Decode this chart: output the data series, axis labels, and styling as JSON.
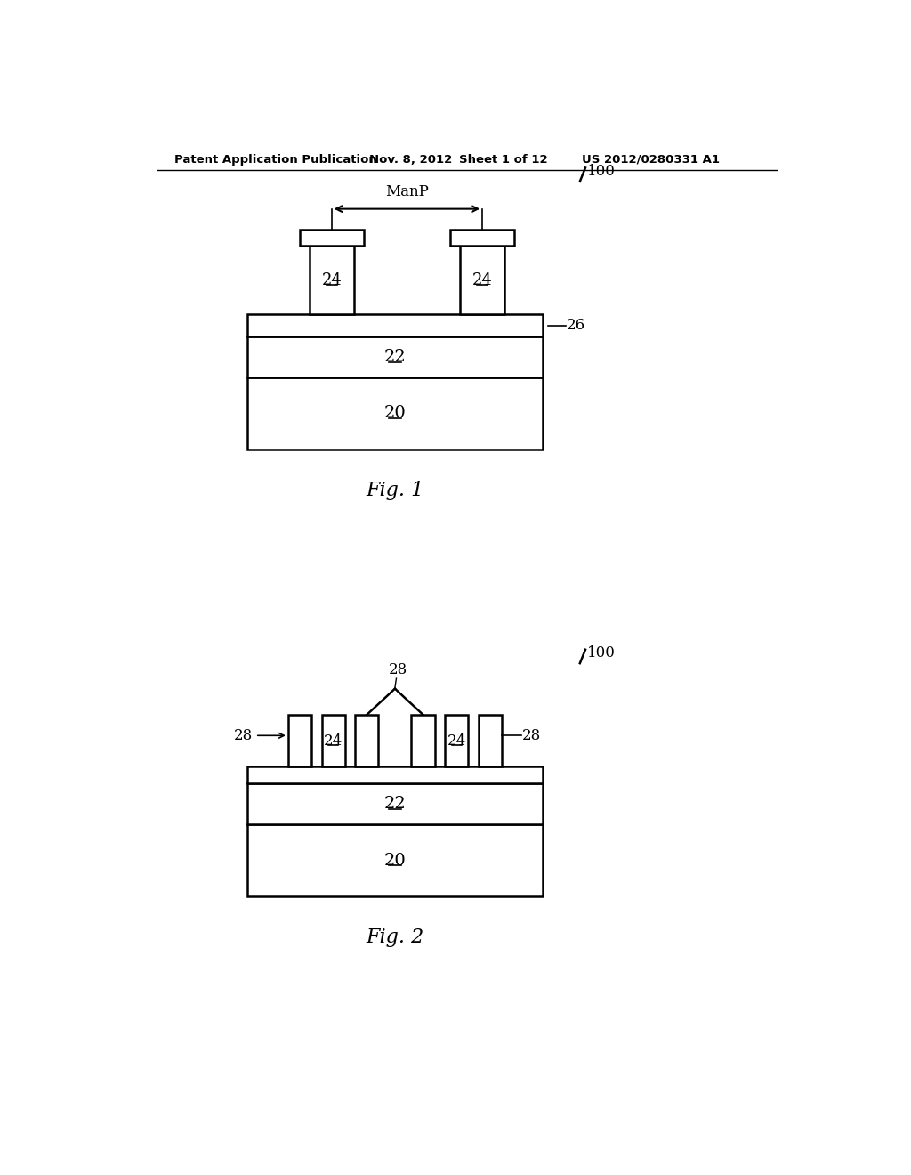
{
  "bg_color": "#ffffff",
  "line_color": "#000000",
  "header_text": "Patent Application Publication",
  "header_date": "Nov. 8, 2012",
  "header_sheet": "Sheet 1 of 12",
  "header_patent": "US 2012/0280331 A1",
  "fig1_label": "Fig. 1",
  "fig2_label": "Fig. 2",
  "label_100_1": "100",
  "label_26": "26",
  "label_22_1": "22",
  "label_20_1": "20",
  "label_24_1a": "24",
  "label_24_1b": "24",
  "label_manp": "ManP",
  "label_22_2": "22",
  "label_20_2": "20",
  "label_24_2a": "24",
  "label_24_2b": "24",
  "label_28_left": "28",
  "label_28_right": "28",
  "label_28_top": "28",
  "label_100_2": "100"
}
